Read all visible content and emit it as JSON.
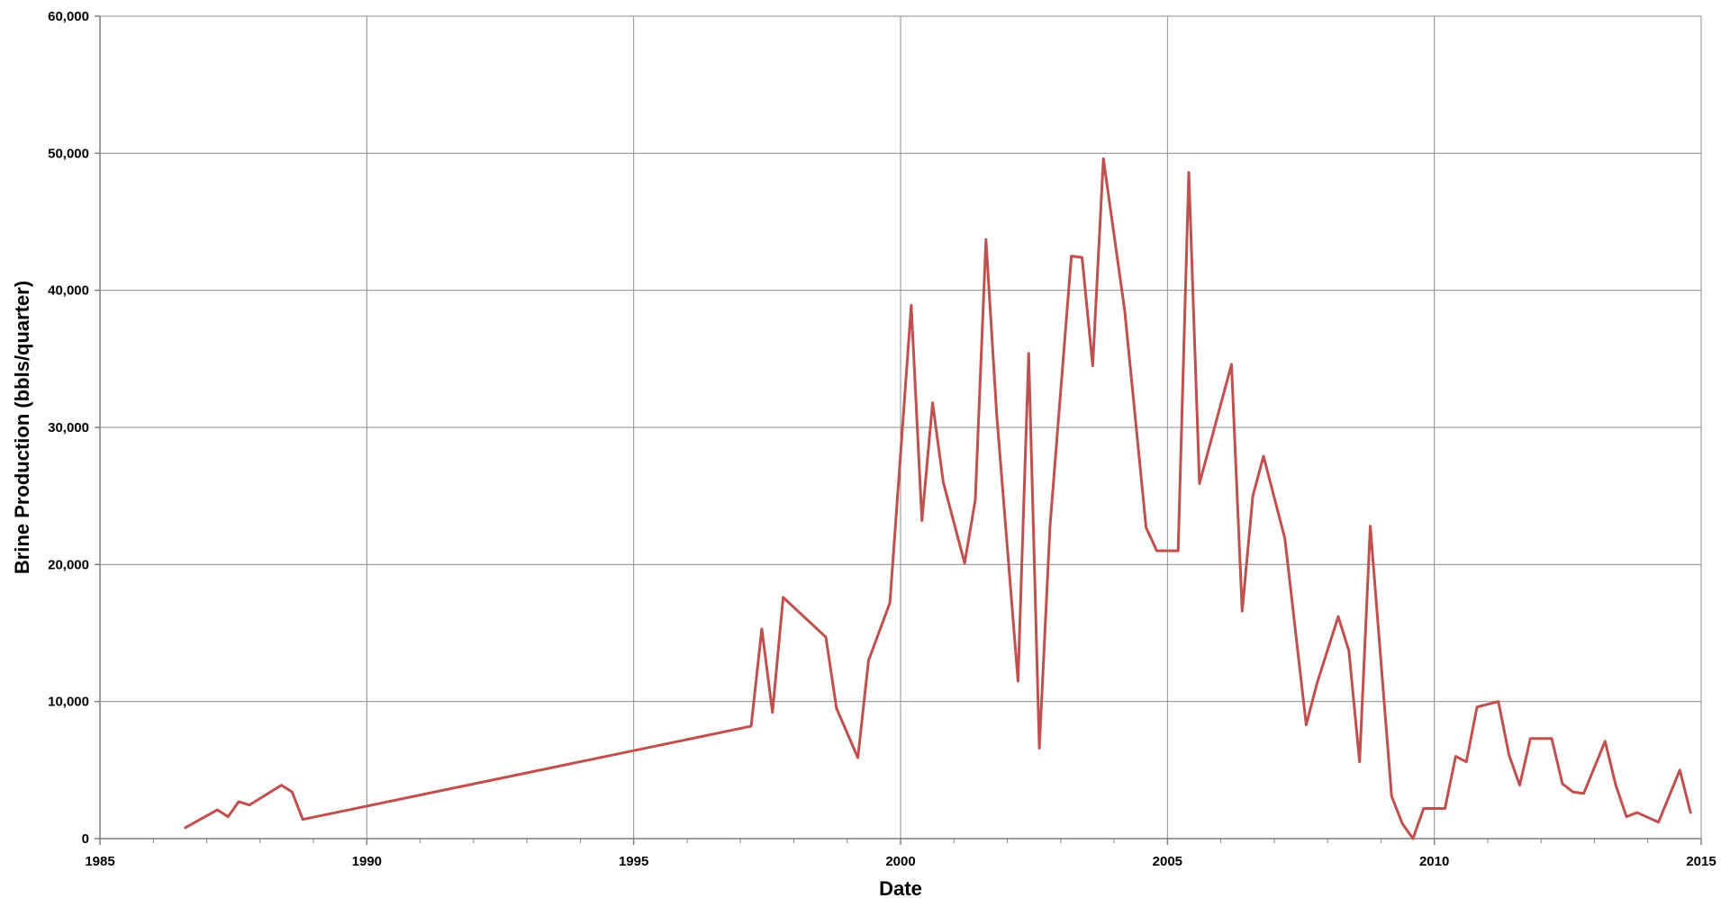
{
  "chart_data": {
    "type": "line",
    "xlabel": "Date",
    "ylabel": "Brine Production (bbls/quarter)",
    "xlim": [
      1985,
      2015
    ],
    "ylim": [
      0,
      60000
    ],
    "x_ticks": [
      1985,
      1990,
      1995,
      2000,
      2005,
      2010,
      2015
    ],
    "x_tick_labels": [
      "1985",
      "1990",
      "1995",
      "2000",
      "2005",
      "2010",
      "2015"
    ],
    "y_ticks": [
      0,
      10000,
      20000,
      30000,
      40000,
      50000,
      60000
    ],
    "y_tick_labels": [
      "0",
      "10,000",
      "20,000",
      "30,000",
      "40,000",
      "50,000",
      "60,000"
    ],
    "grid": true,
    "legend": "none",
    "series": [
      {
        "color": "#c0504d",
        "points": [
          [
            1986.6,
            800
          ],
          [
            1987.2,
            2100
          ],
          [
            1987.4,
            1600
          ],
          [
            1987.6,
            2700
          ],
          [
            1987.8,
            2450
          ],
          [
            1988.4,
            3900
          ],
          [
            1988.6,
            3400
          ],
          [
            1988.8,
            1400
          ],
          [
            1997.2,
            8200
          ],
          [
            1997.4,
            15300
          ],
          [
            1997.6,
            9200
          ],
          [
            1997.8,
            17600
          ],
          [
            1998.6,
            14700
          ],
          [
            1998.8,
            9500
          ],
          [
            1999.2,
            5900
          ],
          [
            1999.4,
            13000
          ],
          [
            1999.8,
            17200
          ],
          [
            2000.2,
            38900
          ],
          [
            2000.4,
            23200
          ],
          [
            2000.6,
            31800
          ],
          [
            2000.8,
            26000
          ],
          [
            2001.2,
            20100
          ],
          [
            2001.4,
            24700
          ],
          [
            2001.6,
            43700
          ],
          [
            2001.8,
            31000
          ],
          [
            2002.2,
            11500
          ],
          [
            2002.4,
            35400
          ],
          [
            2002.6,
            6600
          ],
          [
            2002.8,
            22800
          ],
          [
            2003.2,
            42500
          ],
          [
            2003.4,
            42400
          ],
          [
            2003.6,
            34500
          ],
          [
            2003.8,
            49600
          ],
          [
            2004.2,
            38500
          ],
          [
            2004.6,
            22700
          ],
          [
            2004.8,
            21000
          ],
          [
            2005.2,
            21000
          ],
          [
            2005.4,
            48600
          ],
          [
            2005.6,
            25900
          ],
          [
            2006.2,
            34600
          ],
          [
            2006.4,
            16600
          ],
          [
            2006.6,
            25000
          ],
          [
            2006.8,
            27900
          ],
          [
            2007.2,
            21900
          ],
          [
            2007.6,
            8300
          ],
          [
            2007.8,
            11300
          ],
          [
            2008.2,
            16200
          ],
          [
            2008.4,
            13700
          ],
          [
            2008.6,
            5600
          ],
          [
            2008.8,
            22800
          ],
          [
            2009.2,
            3100
          ],
          [
            2009.4,
            1100
          ],
          [
            2009.6,
            0
          ],
          [
            2009.8,
            2200
          ],
          [
            2010.2,
            2200
          ],
          [
            2010.4,
            6000
          ],
          [
            2010.6,
            5600
          ],
          [
            2010.8,
            9600
          ],
          [
            2011.2,
            10000
          ],
          [
            2011.4,
            6100
          ],
          [
            2011.6,
            3900
          ],
          [
            2011.8,
            7300
          ],
          [
            2012.2,
            7300
          ],
          [
            2012.4,
            4000
          ],
          [
            2012.6,
            3400
          ],
          [
            2012.8,
            3300
          ],
          [
            2013.2,
            7100
          ],
          [
            2013.4,
            3900
          ],
          [
            2013.6,
            1600
          ],
          [
            2013.8,
            1900
          ],
          [
            2014.2,
            1200
          ],
          [
            2014.6,
            5000
          ],
          [
            2014.8,
            1900
          ]
        ]
      }
    ]
  }
}
